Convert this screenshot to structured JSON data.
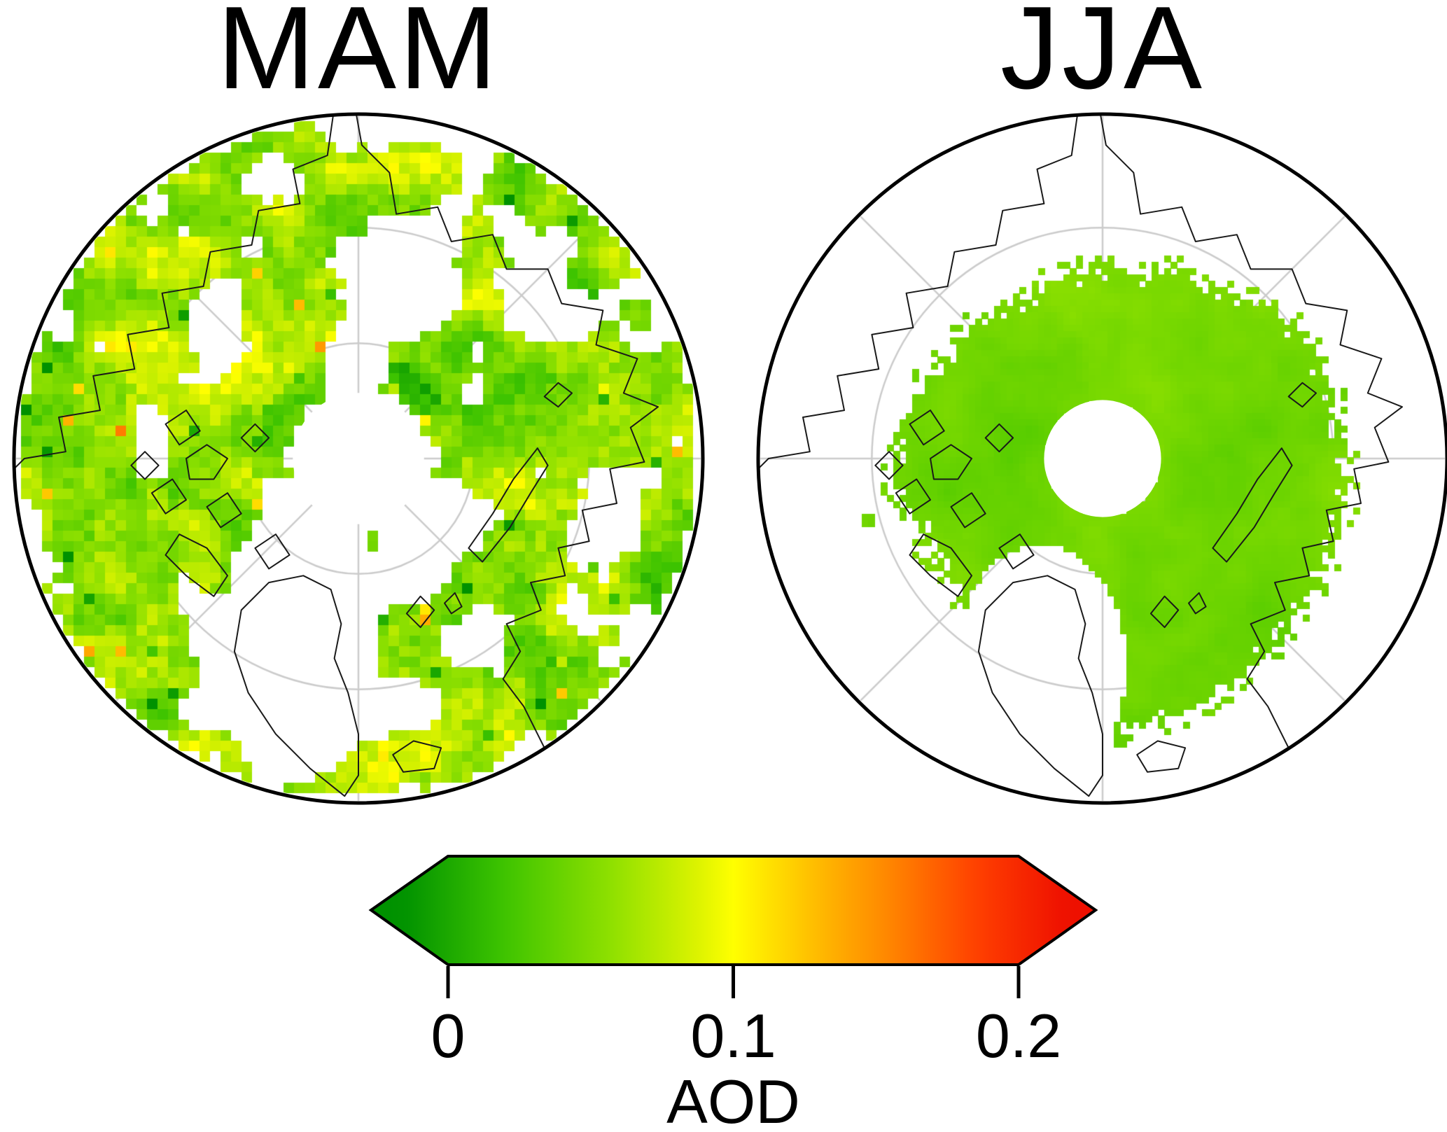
{
  "figure": {
    "description": "Two north-polar maps of Arctic aerosol optical depth by season with a shared horizontal colorbar"
  },
  "maps": [
    {
      "id": "mam",
      "title": "MAM",
      "season": "March-April-May"
    },
    {
      "id": "jja",
      "title": "JJA",
      "season": "June-July-August"
    }
  ],
  "colorbar": {
    "label": "AOD",
    "min": 0,
    "max": 0.2,
    "ticks": [
      {
        "value": 0,
        "label": "0"
      },
      {
        "value": 0.1,
        "label": "0.1"
      },
      {
        "value": 0.2,
        "label": "0.2"
      }
    ],
    "colors": {
      "low": "#009100",
      "mid": "#ffff00",
      "high": "#f71000"
    }
  },
  "chart_data": {
    "type": "heatmap",
    "variable": "AOD",
    "projection": "north polar stereographic",
    "colorbar": {
      "label": "AOD",
      "range": [
        0,
        0.2
      ],
      "tick_values": [
        0,
        0.1,
        0.2
      ],
      "colormap": [
        "green",
        "yellow-green",
        "yellow",
        "orange",
        "red"
      ],
      "arrow_ends": true
    },
    "panels": [
      {
        "title": "MAM",
        "summary": "Patchy pixelated AOD retrievals over the Arctic; typical values 0.05-0.12 (green to yellow-green) with clusters of 0.12-0.2 (orange, sparse red); white gaps over Greenland and a circular data gap at the pole"
      },
      {
        "title": "JJA",
        "summary": "Smooth contiguous AOD field over the Arctic Ocean; values mostly 0.03-0.08 (green); circular white data gap at the pole; no retrievals over surrounding land"
      }
    ]
  }
}
